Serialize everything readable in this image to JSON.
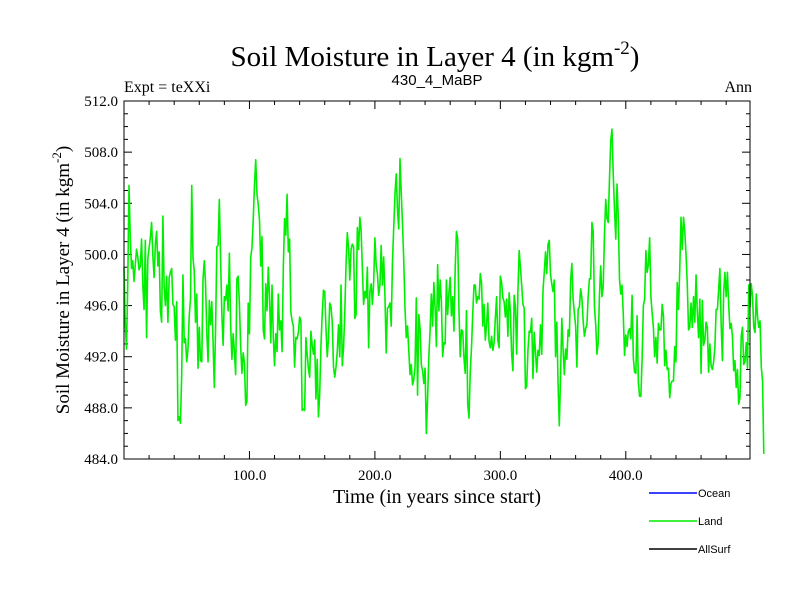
{
  "chart_data": {
    "type": "line",
    "title": "Soil Moisture in Layer 4 (in kgm",
    "title_sup": "-2",
    "title_close": ")",
    "left_label": "Expt = teXXi",
    "center_label": "430_4_MaBP",
    "right_label": "Ann",
    "xlabel": "Time (in years since start)",
    "ylabel": "Soil Moisture in Layer 4 (in kgm",
    "ylabel_sup": "-2",
    "ylabel_close": ")",
    "xlim": [
      0,
      499
    ],
    "ylim": [
      484.0,
      512.0
    ],
    "x_ticks": [
      100,
      200,
      300,
      400
    ],
    "x_tick_labels": [
      "100.0",
      "200.0",
      "300.0",
      "400.0"
    ],
    "y_ticks": [
      484,
      488,
      492,
      496,
      500,
      504,
      508,
      512
    ],
    "y_tick_labels": [
      "484.0",
      "488.0",
      "492.0",
      "496.0",
      "500.0",
      "504.0",
      "508.0",
      "512.0"
    ],
    "legend": [
      {
        "name": "Ocean",
        "color": "#0000ff"
      },
      {
        "name": "Land",
        "color": "#00ee00"
      },
      {
        "name": "AllSurf",
        "color": "#000000"
      }
    ],
    "series": [
      {
        "name": "Land",
        "color": "#00ee00",
        "x_start": 0,
        "x_step": 1,
        "values": [
          499.0,
          494.6,
          492.6,
          497.8,
          505.4,
          501.3,
          498.9,
          499.5,
          497.9,
          499.2,
          500.4,
          499.8,
          498.8,
          499.1,
          501.2,
          497.6,
          495.7,
          501.1,
          493.5,
          499.7,
          500.5,
          501.3,
          502.5,
          499.9,
          498.2,
          500.8,
          501.8,
          499.1,
          500.2,
          495.6,
          494.7,
          503.0,
          497.5,
          496.0,
          498.3,
          494.7,
          498.2,
          498.6,
          498.9,
          496.1,
          495.9,
          493.3,
          496.3,
          487.0,
          487.3,
          486.8,
          490.6,
          498.4,
          493.1,
          493.4,
          491.6,
          492.6,
          495.2,
          496.5,
          505.4,
          499.7,
          498.7,
          494.7,
          496.9,
          491.1,
          494.3,
          491.7,
          491.6,
          498.1,
          499.5,
          497.7,
          493.9,
          491.6,
          496.4,
          494.5,
          496.3,
          493.1,
          489.6,
          494.2,
          500.6,
          500.7,
          504.3,
          499.6,
          495.3,
          492.9,
          496.7,
          496.4,
          497.6,
          495.6,
          500.1,
          494.5,
          491.8,
          493.8,
          492.4,
          490.6,
          498.1,
          498.3,
          496.1,
          492.8,
          490.7,
          492.3,
          491.5,
          488.2,
          488.5,
          496.2,
          493.8,
          499.8,
          500.5,
          502.7,
          505.4,
          507.4,
          504.7,
          503.9,
          502.7,
          499.1,
          501.4,
          494.1,
          493.4,
          497.7,
          495.6,
          499.0,
          496.7,
          493.1,
          497.6,
          493.6,
          491.3,
          493.8,
          492.4,
          496.9,
          494.1,
          494.8,
          492.4,
          499.0,
          502.8,
          501.5,
          504.7,
          500.2,
          501.2,
          495.5,
          494.8,
          494.4,
          491.2,
          493.5,
          493.4,
          493.9,
          495.1,
          494.8,
          487.8,
          487.9,
          487.8,
          493.5,
          492.2,
          491.1,
          490.4,
          494.0,
          492.9,
          492.2,
          493.3,
          488.7,
          491.8,
          487.3,
          489.1,
          492.9,
          495.3,
          497.2,
          497.1,
          494.2,
          492.0,
          493.4,
          496.2,
          495.9,
          494.7,
          491.2,
          490.4,
          491.2,
          492.4,
          494.5,
          492.0,
          497.6,
          491.3,
          492.7,
          495.4,
          499.3,
          501.7,
          500.5,
          498.0,
          500.4,
          500.8,
          500.6,
          495.0,
          495.3,
          502.1,
          500.4,
          502.9,
          501.9,
          498.9,
          496.1,
          497.1,
          496.6,
          499.0,
          492.7,
          497.1,
          497.7,
          496.1,
          497.8,
          501.3,
          499.2,
          498.5,
          496.8,
          497.6,
          500.7,
          497.6,
          499.8,
          496.8,
          492.3,
          495.8,
          495.9,
          496.2,
          494.4,
          499.4,
          502.1,
          504.7,
          506.3,
          503.5,
          502.0,
          507.5,
          504.8,
          502.4,
          499.5,
          495.8,
          493.5,
          494.4,
          492.5,
          490.6,
          491.4,
          489.8,
          490.2,
          491.2,
          496.6,
          489.0,
          495.3,
          494.2,
          491.4,
          490.9,
          489.9,
          491.1,
          486.0,
          488.7,
          492.0,
          494.1,
          496.9,
          494.4,
          497.8,
          495.8,
          492.8,
          499.2,
          495.6,
          498.0,
          496.3,
          492.0,
          493.1,
          493.0,
          498.0,
          495.3,
          497.0,
          498.2,
          495.2,
          496.7,
          494.0,
          498.9,
          501.8,
          501.2,
          495.7,
          492.0,
          494.1,
          494.0,
          491.9,
          490.7,
          495.6,
          488.3,
          487.2,
          490.8,
          492.7,
          495.4,
          497.6,
          497.6,
          496.2,
          496.7,
          496.5,
          498.5,
          497.8,
          494.4,
          496.1,
          493.3,
          494.5,
          496.2,
          493.2,
          492.7,
          493.6,
          492.5,
          493.1,
          495.0,
          496.7,
          493.3,
          492.7,
          498.3,
          497.8,
          496.6,
          496.3,
          495.1,
          496.5,
          493.6,
          497.0,
          495.5,
          492.2,
          490.9,
          496.8,
          495.9,
          492.2,
          497.1,
          500.3,
          499.0,
          497.6,
          496.1,
          495.8,
          489.5,
          489.7,
          492.5,
          494.0,
          493.9,
          495.0,
          490.3,
          493.9,
          492.4,
          490.8,
          492.5,
          492.1,
          494.5,
          492.2,
          497.2,
          498.6,
          500.2,
          498.5,
          500.8,
          501.1,
          498.4,
          497.7,
          497.1,
          498.0,
          492.0,
          494.7,
          489.9,
          486.6,
          490.5,
          495.0,
          492.6,
          490.6,
          492.6,
          491.8,
          494.1,
          493.6,
          497.9,
          499.3,
          496.5,
          495.4,
          494.4,
          491.2,
          495.7,
          495.9,
          497.3,
          496.6,
          494.8,
          493.6,
          494.2,
          494.5,
          496.7,
          498.1,
          498.1,
          502.5,
          501.8,
          495.9,
          494.5,
          492.2,
          493.1,
          496.8,
          499.1,
          496.7,
          497.5,
          501.6,
          504.3,
          502.8,
          502.5,
          505.9,
          508.9,
          509.8,
          506.2,
          503.5,
          501.2,
          505.5,
          502.9,
          498.0,
          496.9,
          497.6,
          495.3,
          492.1,
          493.7,
          492.8,
          494.0,
          494.2,
          493.4,
          496.8,
          491.9,
          490.8,
          490.7,
          495.2,
          490.0,
          488.9,
          488.9,
          491.8,
          496.0,
          496.5,
          500.3,
          498.6,
          499.2,
          501.3,
          496.7,
          495.4,
          494.3,
          492.0,
          493.5,
          491.5,
          494.6,
          494.1,
          494.1,
          496.1,
          495.2,
          491.3,
          492.5,
          491.0,
          491.1,
          488.8,
          489.9,
          490.1,
          490.1,
          492.8,
          491.6,
          497.8,
          495.7,
          498.8,
          502.9,
          500.4,
          502.9,
          501.8,
          500.0,
          497.7,
          494.1,
          494.3,
          496.2,
          494.3,
          496.7,
          494.7,
          498.4,
          495.5,
          493.5,
          496.5,
          490.7,
          496.4,
          492.9,
          493.3,
          494.7,
          494.3,
          490.8,
          493.0,
          491.3,
          491.0,
          491.6,
          492.7,
          495.7,
          495.7,
          497.2,
          498.9,
          494.6,
          491.7,
          497.0,
          498.6,
          496.7,
          498.6,
          496.1,
          494.2,
          494.6,
          493.6,
          490.9,
          491.7,
          489.6,
          491.0,
          488.3,
          488.8,
          493.6,
          494.3,
          491.4,
          491.6,
          493.1,
          491.1,
          497.6,
          495.9,
          497.7,
          496.7,
          494.3,
          493.9,
          496.9,
          495.1,
          494.3,
          494.8,
          491.2,
          490.1,
          484.4
        ]
      }
    ]
  }
}
